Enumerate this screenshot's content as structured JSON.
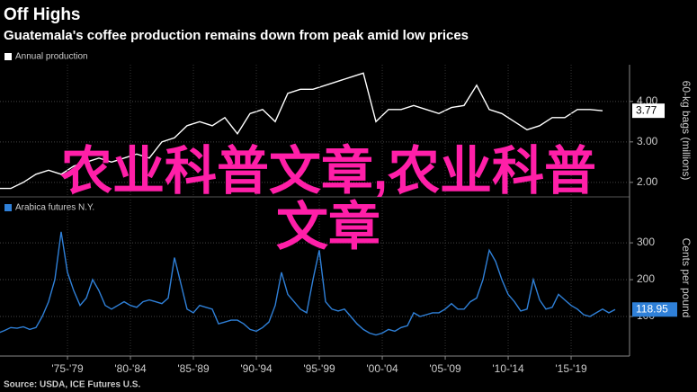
{
  "title": "Off Highs",
  "subtitle": "Guatemala's coffee production remains down from peak amid low prices",
  "source": "Source: USDA, ICE Futures U.S.",
  "overlay": [
    "农业科普文章,农业科普文章"
  ],
  "chart_data": [
    {
      "type": "line",
      "axis_label": "60-kg bags (millions)",
      "series": [
        {
          "name": "Annual production",
          "color": "#ffffff",
          "x": [
            1972,
            1973,
            1974,
            1975,
            1976,
            1977,
            1978,
            1979,
            1980,
            1981,
            1982,
            1983,
            1984,
            1985,
            1986,
            1987,
            1988,
            1989,
            1990,
            1991,
            1992,
            1993,
            1994,
            1995,
            1996,
            1997,
            1998,
            1999,
            2000,
            2001,
            2002,
            2003,
            2004,
            2005,
            2006,
            2007,
            2008,
            2009,
            2010,
            2011,
            2012,
            2013,
            2014,
            2015,
            2016,
            2017,
            2018,
            2019,
            2020
          ],
          "values": [
            1.85,
            1.85,
            2.0,
            2.2,
            2.3,
            2.2,
            2.4,
            2.5,
            2.6,
            2.5,
            2.6,
            2.7,
            2.6,
            3.0,
            3.1,
            3.4,
            3.5,
            3.4,
            3.6,
            3.2,
            3.7,
            3.8,
            3.5,
            4.2,
            4.3,
            4.3,
            4.4,
            4.5,
            4.6,
            4.7,
            3.5,
            3.8,
            3.8,
            3.9,
            3.8,
            3.7,
            3.85,
            3.9,
            4.4,
            3.8,
            3.7,
            3.5,
            3.3,
            3.4,
            3.6,
            3.6,
            3.8,
            3.8,
            3.77
          ]
        }
      ],
      "xlim": [
        1972.14,
        2022.14
      ],
      "ylim": [
        1.73,
        4.84
      ],
      "yticks": [
        {
          "value": 2,
          "label": "2.00"
        },
        {
          "value": 3,
          "label": "3.00"
        },
        {
          "value": 4,
          "label": "4.00"
        }
      ],
      "grid": true
    },
    {
      "type": "line",
      "axis_label": "Cents per pound",
      "series": [
        {
          "name": "Arabica futures N.Y.",
          "color": "#2f80d8",
          "x": [
            1972,
            1972.5,
            1973,
            1973.5,
            1974,
            1974.5,
            1975,
            1975.5,
            1976,
            1976.5,
            1977,
            1977.5,
            1978,
            1978.5,
            1979,
            1979.5,
            1980,
            1980.5,
            1981,
            1981.5,
            1982,
            1982.5,
            1983,
            1983.5,
            1984,
            1984.5,
            1985,
            1985.5,
            1986,
            1986.5,
            1987,
            1987.5,
            1988,
            1988.5,
            1989,
            1989.5,
            1990,
            1990.5,
            1991,
            1991.5,
            1992,
            1992.5,
            1993,
            1993.5,
            1994,
            1994.5,
            1995,
            1995.5,
            1996,
            1996.5,
            1997,
            1997.5,
            1998,
            1998.5,
            1999,
            1999.5,
            2000,
            2000.5,
            2001,
            2001.5,
            2002,
            2002.5,
            2003,
            2003.5,
            2004,
            2004.5,
            2005,
            2005.5,
            2006,
            2006.5,
            2007,
            2007.5,
            2008,
            2008.5,
            2009,
            2009.5,
            2010,
            2010.5,
            2011,
            2011.5,
            2012,
            2012.5,
            2013,
            2013.5,
            2014,
            2014.5,
            2015,
            2015.5,
            2016,
            2016.5,
            2017,
            2017.5,
            2018,
            2018.5,
            2019,
            2019.5,
            2020,
            2020.5,
            2021
          ],
          "values": [
            55,
            62,
            70,
            68,
            72,
            65,
            70,
            100,
            140,
            200,
            330,
            220,
            170,
            130,
            150,
            200,
            170,
            130,
            120,
            130,
            140,
            130,
            125,
            140,
            145,
            140,
            135,
            150,
            260,
            190,
            120,
            110,
            130,
            125,
            120,
            80,
            85,
            90,
            90,
            80,
            65,
            60,
            70,
            85,
            130,
            220,
            160,
            140,
            120,
            110,
            200,
            280,
            140,
            120,
            115,
            120,
            100,
            80,
            65,
            55,
            50,
            55,
            65,
            60,
            70,
            75,
            110,
            100,
            105,
            110,
            110,
            120,
            135,
            120,
            120,
            140,
            150,
            200,
            280,
            250,
            200,
            160,
            140,
            115,
            120,
            200,
            145,
            120,
            125,
            160,
            145,
            130,
            120,
            105,
            100,
            110,
            120,
            110,
            118.95
          ]
        }
      ],
      "xlim": [
        1972.14,
        2022.14
      ],
      "ylim": [
        0,
        410
      ],
      "yticks": [
        100,
        200,
        300
      ],
      "xticks": [
        {
          "value": 1977.5,
          "label": "'75-'79"
        },
        {
          "value": 1982.5,
          "label": "'80-'84"
        },
        {
          "value": 1987.5,
          "label": "'85-'89"
        },
        {
          "value": 1992.5,
          "label": "'90-'94"
        },
        {
          "value": 1997.5,
          "label": "'95-'99"
        },
        {
          "value": 2002.5,
          "label": "'00-'04"
        },
        {
          "value": 2007.5,
          "label": "'05-'09"
        },
        {
          "value": 2012.5,
          "label": "'10-'14"
        },
        {
          "value": 2017.5,
          "label": "'15-'19"
        }
      ],
      "grid": true
    }
  ]
}
